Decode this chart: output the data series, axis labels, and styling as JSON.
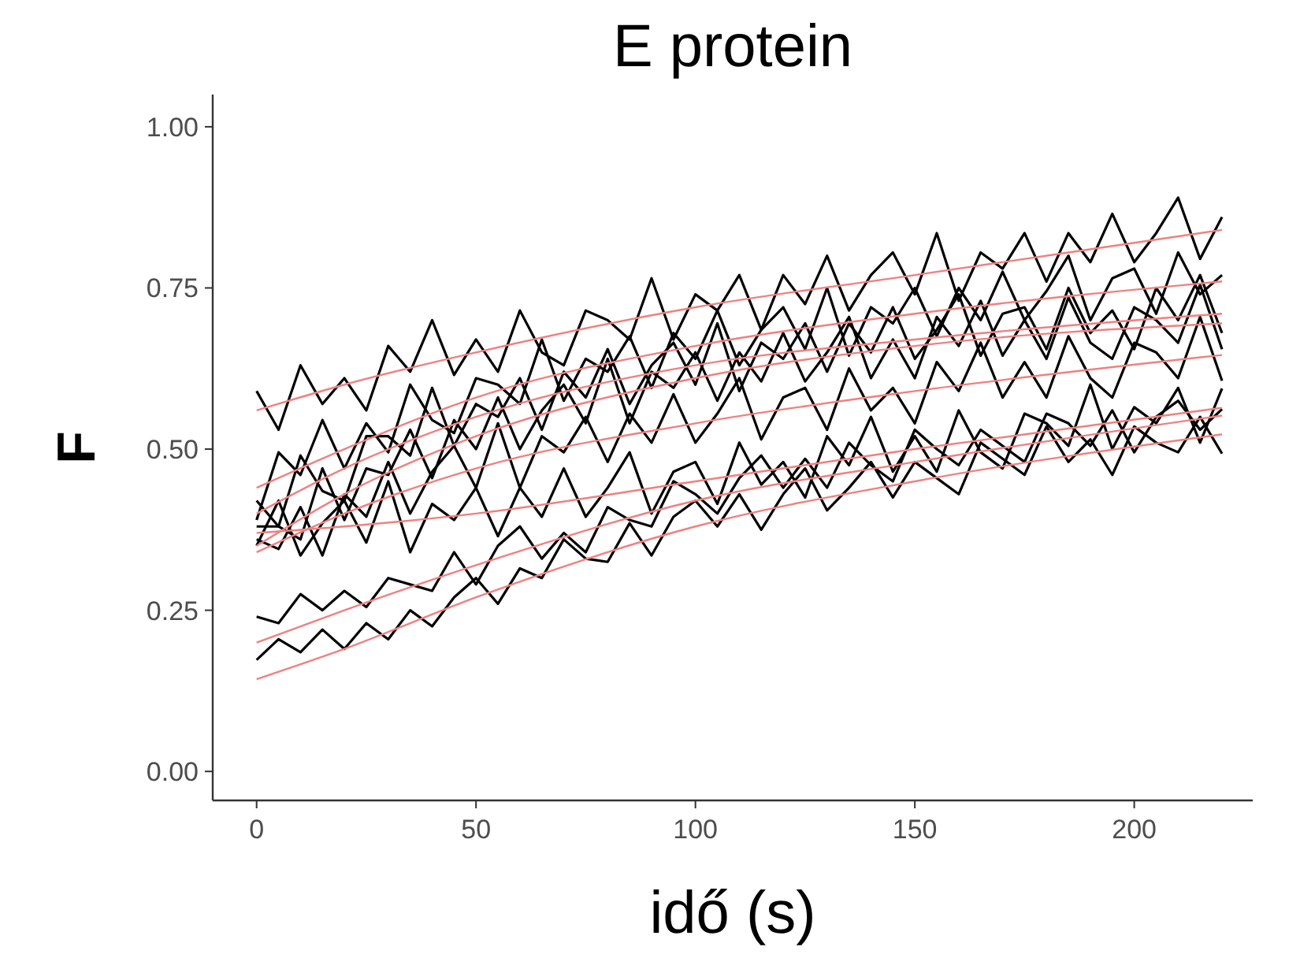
{
  "chart_data": {
    "type": "line",
    "title": "E protein",
    "xlabel": "idő (s)",
    "ylabel": "F",
    "x": [
      0,
      5,
      10,
      15,
      20,
      25,
      30,
      35,
      40,
      45,
      50,
      55,
      60,
      65,
      70,
      75,
      80,
      85,
      90,
      95,
      100,
      105,
      110,
      115,
      120,
      125,
      130,
      135,
      140,
      145,
      150,
      155,
      160,
      165,
      170,
      175,
      180,
      185,
      190,
      195,
      200,
      205,
      210,
      215,
      220
    ],
    "xlim": [
      -10,
      227
    ],
    "ylim": [
      -0.045,
      1.05
    ],
    "xticks": [
      0,
      50,
      100,
      150,
      200
    ],
    "yticks": [
      {
        "value": 0,
        "label": "0.00"
      },
      {
        "value": 0.25,
        "label": "0.25"
      },
      {
        "value": 0.5,
        "label": "0.50"
      },
      {
        "value": 0.75,
        "label": "0.75"
      },
      {
        "value": 1,
        "label": "1.00"
      }
    ],
    "grid": false,
    "line_style": "solid",
    "marker": "none",
    "series": [
      {
        "color": "#000000",
        "values": [
          0.59,
          0.53,
          0.63,
          0.57,
          0.61,
          0.56,
          0.66,
          0.62,
          0.7,
          0.615,
          0.67,
          0.62,
          0.715,
          0.65,
          0.63,
          0.715,
          0.7,
          0.67,
          0.765,
          0.67,
          0.74,
          0.715,
          0.77,
          0.685,
          0.77,
          0.725,
          0.8,
          0.715,
          0.77,
          0.805,
          0.74,
          0.835,
          0.73,
          0.805,
          0.78,
          0.835,
          0.76,
          0.835,
          0.79,
          0.865,
          0.79,
          0.835,
          0.89,
          0.795,
          0.86
        ]
      },
      {
        "color": "#000000",
        "values": [
          0.39,
          0.495,
          0.46,
          0.545,
          0.47,
          0.54,
          0.495,
          0.6,
          0.545,
          0.525,
          0.61,
          0.6,
          0.57,
          0.67,
          0.575,
          0.64,
          0.62,
          0.675,
          0.595,
          0.68,
          0.64,
          0.715,
          0.63,
          0.685,
          0.72,
          0.655,
          0.75,
          0.645,
          0.72,
          0.695,
          0.75,
          0.675,
          0.75,
          0.7,
          0.775,
          0.7,
          0.745,
          0.8,
          0.7,
          0.765,
          0.78,
          0.71,
          0.805,
          0.74,
          0.77
        ]
      },
      {
        "color": "#000000",
        "values": [
          0.42,
          0.38,
          0.49,
          0.435,
          0.42,
          0.52,
          0.52,
          0.49,
          0.595,
          0.505,
          0.57,
          0.55,
          0.61,
          0.53,
          0.62,
          0.58,
          0.655,
          0.57,
          0.63,
          0.665,
          0.6,
          0.695,
          0.59,
          0.665,
          0.64,
          0.695,
          0.62,
          0.695,
          0.65,
          0.72,
          0.64,
          0.685,
          0.74,
          0.645,
          0.71,
          0.72,
          0.655,
          0.75,
          0.68,
          0.715,
          0.655,
          0.75,
          0.7,
          0.77,
          0.68
        ]
      },
      {
        "color": "#000000",
        "values": [
          0.38,
          0.38,
          0.36,
          0.47,
          0.39,
          0.47,
          0.46,
          0.53,
          0.455,
          0.545,
          0.5,
          0.58,
          0.5,
          0.56,
          0.6,
          0.54,
          0.64,
          0.54,
          0.62,
          0.595,
          0.65,
          0.575,
          0.65,
          0.605,
          0.68,
          0.605,
          0.65,
          0.705,
          0.61,
          0.67,
          0.61,
          0.705,
          0.66,
          0.73,
          0.645,
          0.7,
          0.64,
          0.735,
          0.665,
          0.64,
          0.72,
          0.7,
          0.665,
          0.755,
          0.655
        ]
      },
      {
        "color": "#000000",
        "values": [
          0.36,
          0.345,
          0.41,
          0.335,
          0.43,
          0.395,
          0.48,
          0.4,
          0.465,
          0.505,
          0.44,
          0.54,
          0.44,
          0.52,
          0.495,
          0.55,
          0.48,
          0.555,
          0.51,
          0.585,
          0.51,
          0.555,
          0.61,
          0.515,
          0.58,
          0.595,
          0.53,
          0.625,
          0.56,
          0.595,
          0.54,
          0.635,
          0.59,
          0.665,
          0.58,
          0.635,
          0.58,
          0.675,
          0.61,
          0.58,
          0.665,
          0.65,
          0.61,
          0.705,
          0.606
        ]
      },
      {
        "color": "#000000",
        "values": [
          0.35,
          0.42,
          0.335,
          0.385,
          0.42,
          0.355,
          0.45,
          0.34,
          0.415,
          0.39,
          0.44,
          0.365,
          0.44,
          0.395,
          0.47,
          0.395,
          0.44,
          0.495,
          0.4,
          0.465,
          0.48,
          0.415,
          0.51,
          0.445,
          0.48,
          0.425,
          0.52,
          0.475,
          0.55,
          0.465,
          0.52,
          0.465,
          0.56,
          0.495,
          0.47,
          0.555,
          0.54,
          0.505,
          0.6,
          0.5,
          0.565,
          0.54,
          0.595,
          0.51,
          0.594
        ]
      },
      {
        "color": "#000000",
        "values": [
          0.24,
          0.23,
          0.275,
          0.25,
          0.28,
          0.255,
          0.3,
          0.29,
          0.28,
          0.34,
          0.29,
          0.35,
          0.38,
          0.33,
          0.37,
          0.34,
          0.41,
          0.39,
          0.38,
          0.45,
          0.43,
          0.4,
          0.455,
          0.49,
          0.44,
          0.485,
          0.44,
          0.51,
          0.475,
          0.45,
          0.53,
          0.5,
          0.475,
          0.53,
          0.505,
          0.48,
          0.555,
          0.54,
          0.505,
          0.56,
          0.495,
          0.55,
          0.575,
          0.53,
          0.562
        ]
      },
      {
        "color": "#000000",
        "values": [
          0.173,
          0.205,
          0.185,
          0.22,
          0.19,
          0.23,
          0.205,
          0.25,
          0.225,
          0.27,
          0.3,
          0.26,
          0.315,
          0.3,
          0.36,
          0.33,
          0.325,
          0.385,
          0.335,
          0.395,
          0.42,
          0.38,
          0.43,
          0.375,
          0.43,
          0.47,
          0.405,
          0.44,
          0.48,
          0.425,
          0.48,
          0.455,
          0.43,
          0.51,
          0.485,
          0.46,
          0.535,
          0.48,
          0.515,
          0.46,
          0.535,
          0.51,
          0.495,
          0.55,
          0.493
        ]
      },
      {
        "color": "#f08080",
        "x": [
          0,
          20,
          50,
          100,
          150,
          220
        ],
        "values": [
          0.56,
          0.6,
          0.65,
          0.72,
          0.77,
          0.84
        ]
      },
      {
        "color": "#f08080",
        "x": [
          0,
          20,
          50,
          100,
          150,
          220
        ],
        "values": [
          0.44,
          0.5,
          0.58,
          0.66,
          0.71,
          0.76
        ]
      },
      {
        "color": "#f08080",
        "x": [
          0,
          20,
          50,
          100,
          150,
          220
        ],
        "values": [
          0.4,
          0.47,
          0.55,
          0.63,
          0.67,
          0.71
        ]
      },
      {
        "color": "#f08080",
        "x": [
          0,
          20,
          50,
          100,
          150,
          220
        ],
        "values": [
          0.35,
          0.43,
          0.52,
          0.61,
          0.66,
          0.695
        ]
      },
      {
        "color": "#f08080",
        "x": [
          0,
          20,
          50,
          100,
          150,
          220
        ],
        "values": [
          0.34,
          0.4,
          0.47,
          0.54,
          0.59,
          0.646
        ]
      },
      {
        "color": "#f08080",
        "x": [
          0,
          20,
          50,
          100,
          150,
          220
        ],
        "values": [
          0.37,
          0.38,
          0.4,
          0.45,
          0.5,
          0.564
        ]
      },
      {
        "color": "#f08080",
        "x": [
          0,
          20,
          50,
          100,
          150,
          220
        ],
        "values": [
          0.2,
          0.25,
          0.32,
          0.42,
          0.48,
          0.552
        ]
      },
      {
        "color": "#f08080",
        "x": [
          0,
          20,
          50,
          100,
          150,
          220
        ],
        "values": [
          0.143,
          0.19,
          0.27,
          0.38,
          0.45,
          0.523
        ]
      }
    ]
  }
}
